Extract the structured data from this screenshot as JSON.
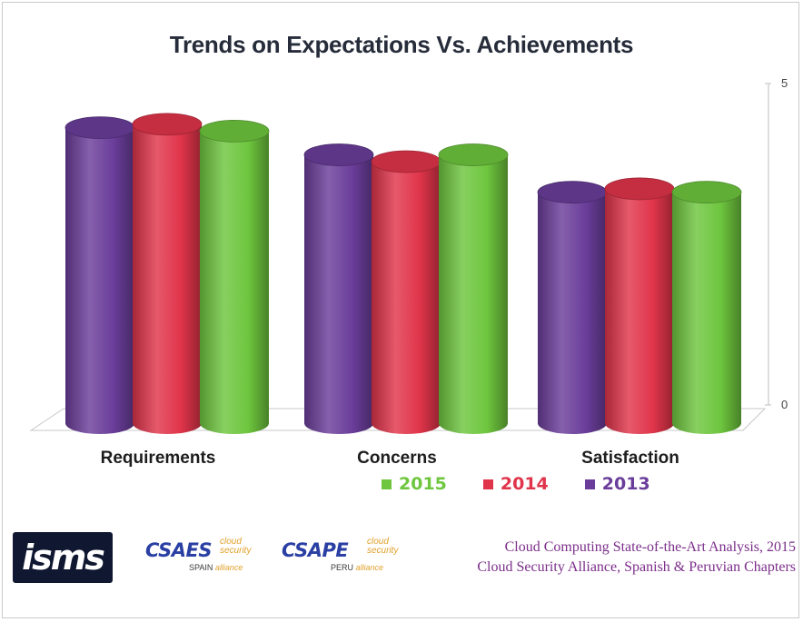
{
  "chart_data": {
    "type": "bar",
    "title": "Trends on Expectations Vs. Achievements",
    "categories": [
      "Requirements",
      "Concerns",
      "Satisfaction"
    ],
    "series": [
      {
        "name": "2013",
        "values": [
          4.35,
          3.95,
          3.4
        ]
      },
      {
        "name": "2014",
        "values": [
          4.4,
          3.85,
          3.45
        ]
      },
      {
        "name": "2015",
        "values": [
          4.3,
          3.95,
          3.4
        ]
      }
    ],
    "ylim": [
      0,
      5
    ],
    "yticks": [
      "0",
      "5"
    ],
    "xlabel": "",
    "ylabel": "",
    "grid": false,
    "legend_order": [
      "2015",
      "2014",
      "2013"
    ],
    "legend_position": "bottom",
    "colors": {
      "2013": "#6a3d9a",
      "2014": "#e0344a",
      "2015": "#6ec63e"
    }
  },
  "footer": {
    "isms_logo_text": "isms",
    "csa_spain": {
      "name": "CSAES",
      "tag1": "cloud",
      "tag2": "security",
      "tag3": "alliance",
      "region": "SPAIN"
    },
    "csa_peru": {
      "name": "CSAPE",
      "tag1": "cloud",
      "tag2": "security",
      "tag3": "alliance",
      "region": "PERU"
    },
    "source_line1": "Cloud Computing State-of-the-Art Analysis,  2015",
    "source_line2": "Cloud Security Alliance, Spanish & Peruvian Chapters"
  }
}
